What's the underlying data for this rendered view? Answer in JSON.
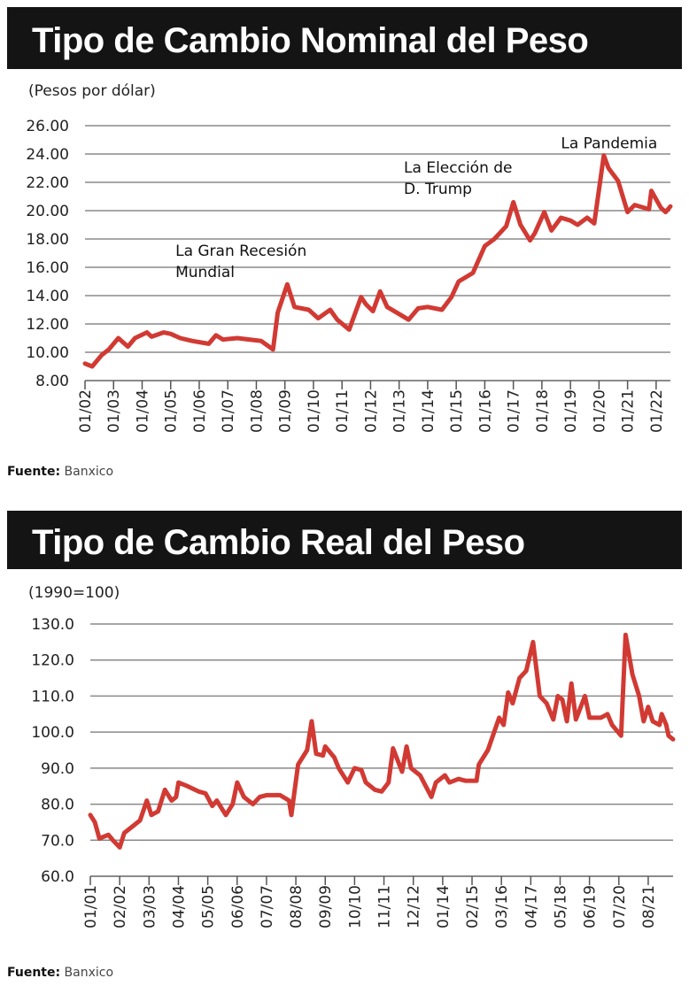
{
  "chart_data": [
    {
      "type": "line",
      "title": "Tipo de Cambio Nominal del Peso",
      "unit_label": "(Pesos por dólar)",
      "source_label": "Fuente:",
      "source": "Banxico",
      "ylim": [
        8,
        26
      ],
      "yticks": [
        "8.00",
        "10.00",
        "12.00",
        "14.00",
        "16.00",
        "18.00",
        "20.00",
        "22.00",
        "24.00",
        "26.00"
      ],
      "xlim": [
        "2002-01",
        "2022-07"
      ],
      "xticks": [
        "2002-01",
        "2003-01",
        "2004-01",
        "2005-01",
        "2006-01",
        "2007-01",
        "2008-01",
        "2009-01",
        "2010-01",
        "2011-01",
        "2012-01",
        "2013-01",
        "2014-01",
        "2015-01",
        "2016-01",
        "2017-01",
        "2018-01",
        "2019-01",
        "2020-01",
        "2021-01",
        "2022-01"
      ],
      "xtick_labels": [
        "01/02",
        "01/03",
        "01/04",
        "01/05",
        "01/06",
        "01/07",
        "01/08",
        "01/09",
        "01/10",
        "01/11",
        "01/12",
        "01/13",
        "01/14",
        "01/15",
        "01/16",
        "01/17",
        "01/18",
        "01/19",
        "01/20",
        "01/21",
        "01/22"
      ],
      "grid": true,
      "line_color": "#d13a33",
      "annotations": [
        {
          "lines": [
            "La Gran Recesión",
            "Mundial"
          ],
          "date": "2005-03",
          "value": 16.8
        },
        {
          "lines": [
            "La Elección de",
            "D. Trump"
          ],
          "date": "2013-03",
          "value": 22.7
        },
        {
          "lines": [
            "La Pandemia"
          ],
          "date": "2018-09",
          "value": 24.4
        }
      ],
      "x": [
        "2002-01",
        "2002-04",
        "2002-08",
        "2002-11",
        "2003-03",
        "2003-07",
        "2003-10",
        "2004-03",
        "2004-05",
        "2004-10",
        "2005-01",
        "2005-05",
        "2005-10",
        "2006-05",
        "2006-08",
        "2006-11",
        "2007-05",
        "2007-10",
        "2008-03",
        "2008-08",
        "2008-10",
        "2009-02",
        "2009-05",
        "2009-11",
        "2010-03",
        "2010-08",
        "2010-11",
        "2011-04",
        "2011-09",
        "2011-11",
        "2012-02",
        "2012-05",
        "2012-08",
        "2013-01",
        "2013-05",
        "2013-09",
        "2014-01",
        "2014-07",
        "2014-11",
        "2015-02",
        "2015-08",
        "2016-01",
        "2016-05",
        "2016-10",
        "2017-01",
        "2017-04",
        "2017-08",
        "2017-10",
        "2018-02",
        "2018-05",
        "2018-09",
        "2019-01",
        "2019-04",
        "2019-08",
        "2019-11",
        "2020-03",
        "2020-05",
        "2020-09",
        "2021-01",
        "2021-04",
        "2021-10",
        "2021-11",
        "2022-03",
        "2022-05",
        "2022-07"
      ],
      "values": [
        9.2,
        9.0,
        9.8,
        10.2,
        11.0,
        10.4,
        11.0,
        11.4,
        11.1,
        11.4,
        11.3,
        11.0,
        10.8,
        10.6,
        11.2,
        10.9,
        11.0,
        10.9,
        10.8,
        10.2,
        12.8,
        14.8,
        13.2,
        13.0,
        12.4,
        13.0,
        12.3,
        11.6,
        13.9,
        13.4,
        12.9,
        14.3,
        13.2,
        12.7,
        12.3,
        13.1,
        13.2,
        13.0,
        13.9,
        15.0,
        15.6,
        17.5,
        18.0,
        18.9,
        20.6,
        19.0,
        17.9,
        18.4,
        19.9,
        18.6,
        19.5,
        19.3,
        19.0,
        19.5,
        19.1,
        23.9,
        23.0,
        22.1,
        19.9,
        20.4,
        20.1,
        21.4,
        20.2,
        19.9,
        20.3
      ]
    },
    {
      "type": "line",
      "title": "Tipo de Cambio Real del Peso",
      "unit_label": "(1990=100)",
      "source_label": "Fuente:",
      "source": "Banxico",
      "ylim": [
        60,
        130
      ],
      "yticks": [
        "60.0",
        "70.0",
        "80.0",
        "90.0",
        "100.0",
        "110.0",
        "120.0",
        "130.0"
      ],
      "xlim": [
        "2001-01",
        "2022-07"
      ],
      "xticks": [
        "2001-01",
        "2002-02",
        "2003-03",
        "2004-04",
        "2005-05",
        "2006-06",
        "2007-07",
        "2008-08",
        "2009-09",
        "2010-10",
        "2011-11",
        "2012-12",
        "2014-01",
        "2015-02",
        "2016-03",
        "2017-04",
        "2018-05",
        "2019-06",
        "2020-07",
        "2021-08"
      ],
      "xtick_labels": [
        "01/01",
        "02/02",
        "03/03",
        "04/04",
        "05/05",
        "06/06",
        "07/07",
        "08/08",
        "09/09",
        "10/10",
        "11/11",
        "12/12",
        "01/14",
        "02/15",
        "03/16",
        "04/17",
        "05/18",
        "06/19",
        "07/20",
        "08/21"
      ],
      "grid": true,
      "line_color": "#d13a33",
      "x": [
        "2001-01",
        "2001-03",
        "2001-05",
        "2001-09",
        "2001-11",
        "2002-02",
        "2002-04",
        "2002-08",
        "2002-11",
        "2003-02",
        "2003-04",
        "2003-07",
        "2003-10",
        "2004-01",
        "2004-03",
        "2004-04",
        "2004-08",
        "2005-01",
        "2005-04",
        "2005-07",
        "2005-09",
        "2006-01",
        "2006-04",
        "2006-06",
        "2006-09",
        "2007-01",
        "2007-04",
        "2007-07",
        "2008-01",
        "2008-05",
        "2008-06",
        "2008-09",
        "2009-01",
        "2009-03",
        "2009-05",
        "2009-08",
        "2009-09",
        "2010-01",
        "2010-03",
        "2010-07",
        "2010-10",
        "2011-01",
        "2011-03",
        "2011-07",
        "2011-10",
        "2012-01",
        "2012-03",
        "2012-07",
        "2012-09",
        "2012-11",
        "2013-03",
        "2013-08",
        "2013-10",
        "2014-02",
        "2014-04",
        "2014-08",
        "2014-11",
        "2015-04",
        "2015-05",
        "2015-09",
        "2016-02",
        "2016-04",
        "2016-06",
        "2016-08",
        "2016-11",
        "2017-02",
        "2017-05",
        "2017-08",
        "2017-11",
        "2018-02",
        "2018-04",
        "2018-06",
        "2018-08",
        "2018-10",
        "2018-12",
        "2019-04",
        "2019-06",
        "2019-11",
        "2020-02",
        "2020-04",
        "2020-08",
        "2020-10",
        "2021-01",
        "2021-04",
        "2021-06",
        "2021-08",
        "2021-10",
        "2022-01",
        "2022-02",
        "2022-04",
        "2022-05",
        "2022-07"
      ],
      "values": [
        77,
        75,
        70.5,
        71.5,
        70,
        68,
        72,
        74,
        75.5,
        81,
        77,
        78,
        84,
        81,
        82,
        86,
        85,
        83.5,
        83,
        79.5,
        81,
        77,
        80,
        86,
        82,
        80,
        82,
        82.5,
        82.5,
        81,
        77,
        91,
        95,
        103,
        94,
        93.5,
        96,
        93,
        90,
        86,
        90,
        89.5,
        86,
        84,
        83.5,
        86,
        95.5,
        89,
        96,
        90,
        88,
        82,
        86,
        88,
        86,
        87,
        86.5,
        86.5,
        91,
        95,
        104,
        102,
        111,
        108,
        115,
        117,
        125,
        110,
        108,
        103.5,
        110,
        109,
        103,
        113.5,
        103.5,
        110,
        104,
        104,
        105,
        102,
        99,
        127,
        116,
        110,
        103,
        107,
        103,
        102,
        105,
        102,
        99,
        98
      ]
    }
  ]
}
